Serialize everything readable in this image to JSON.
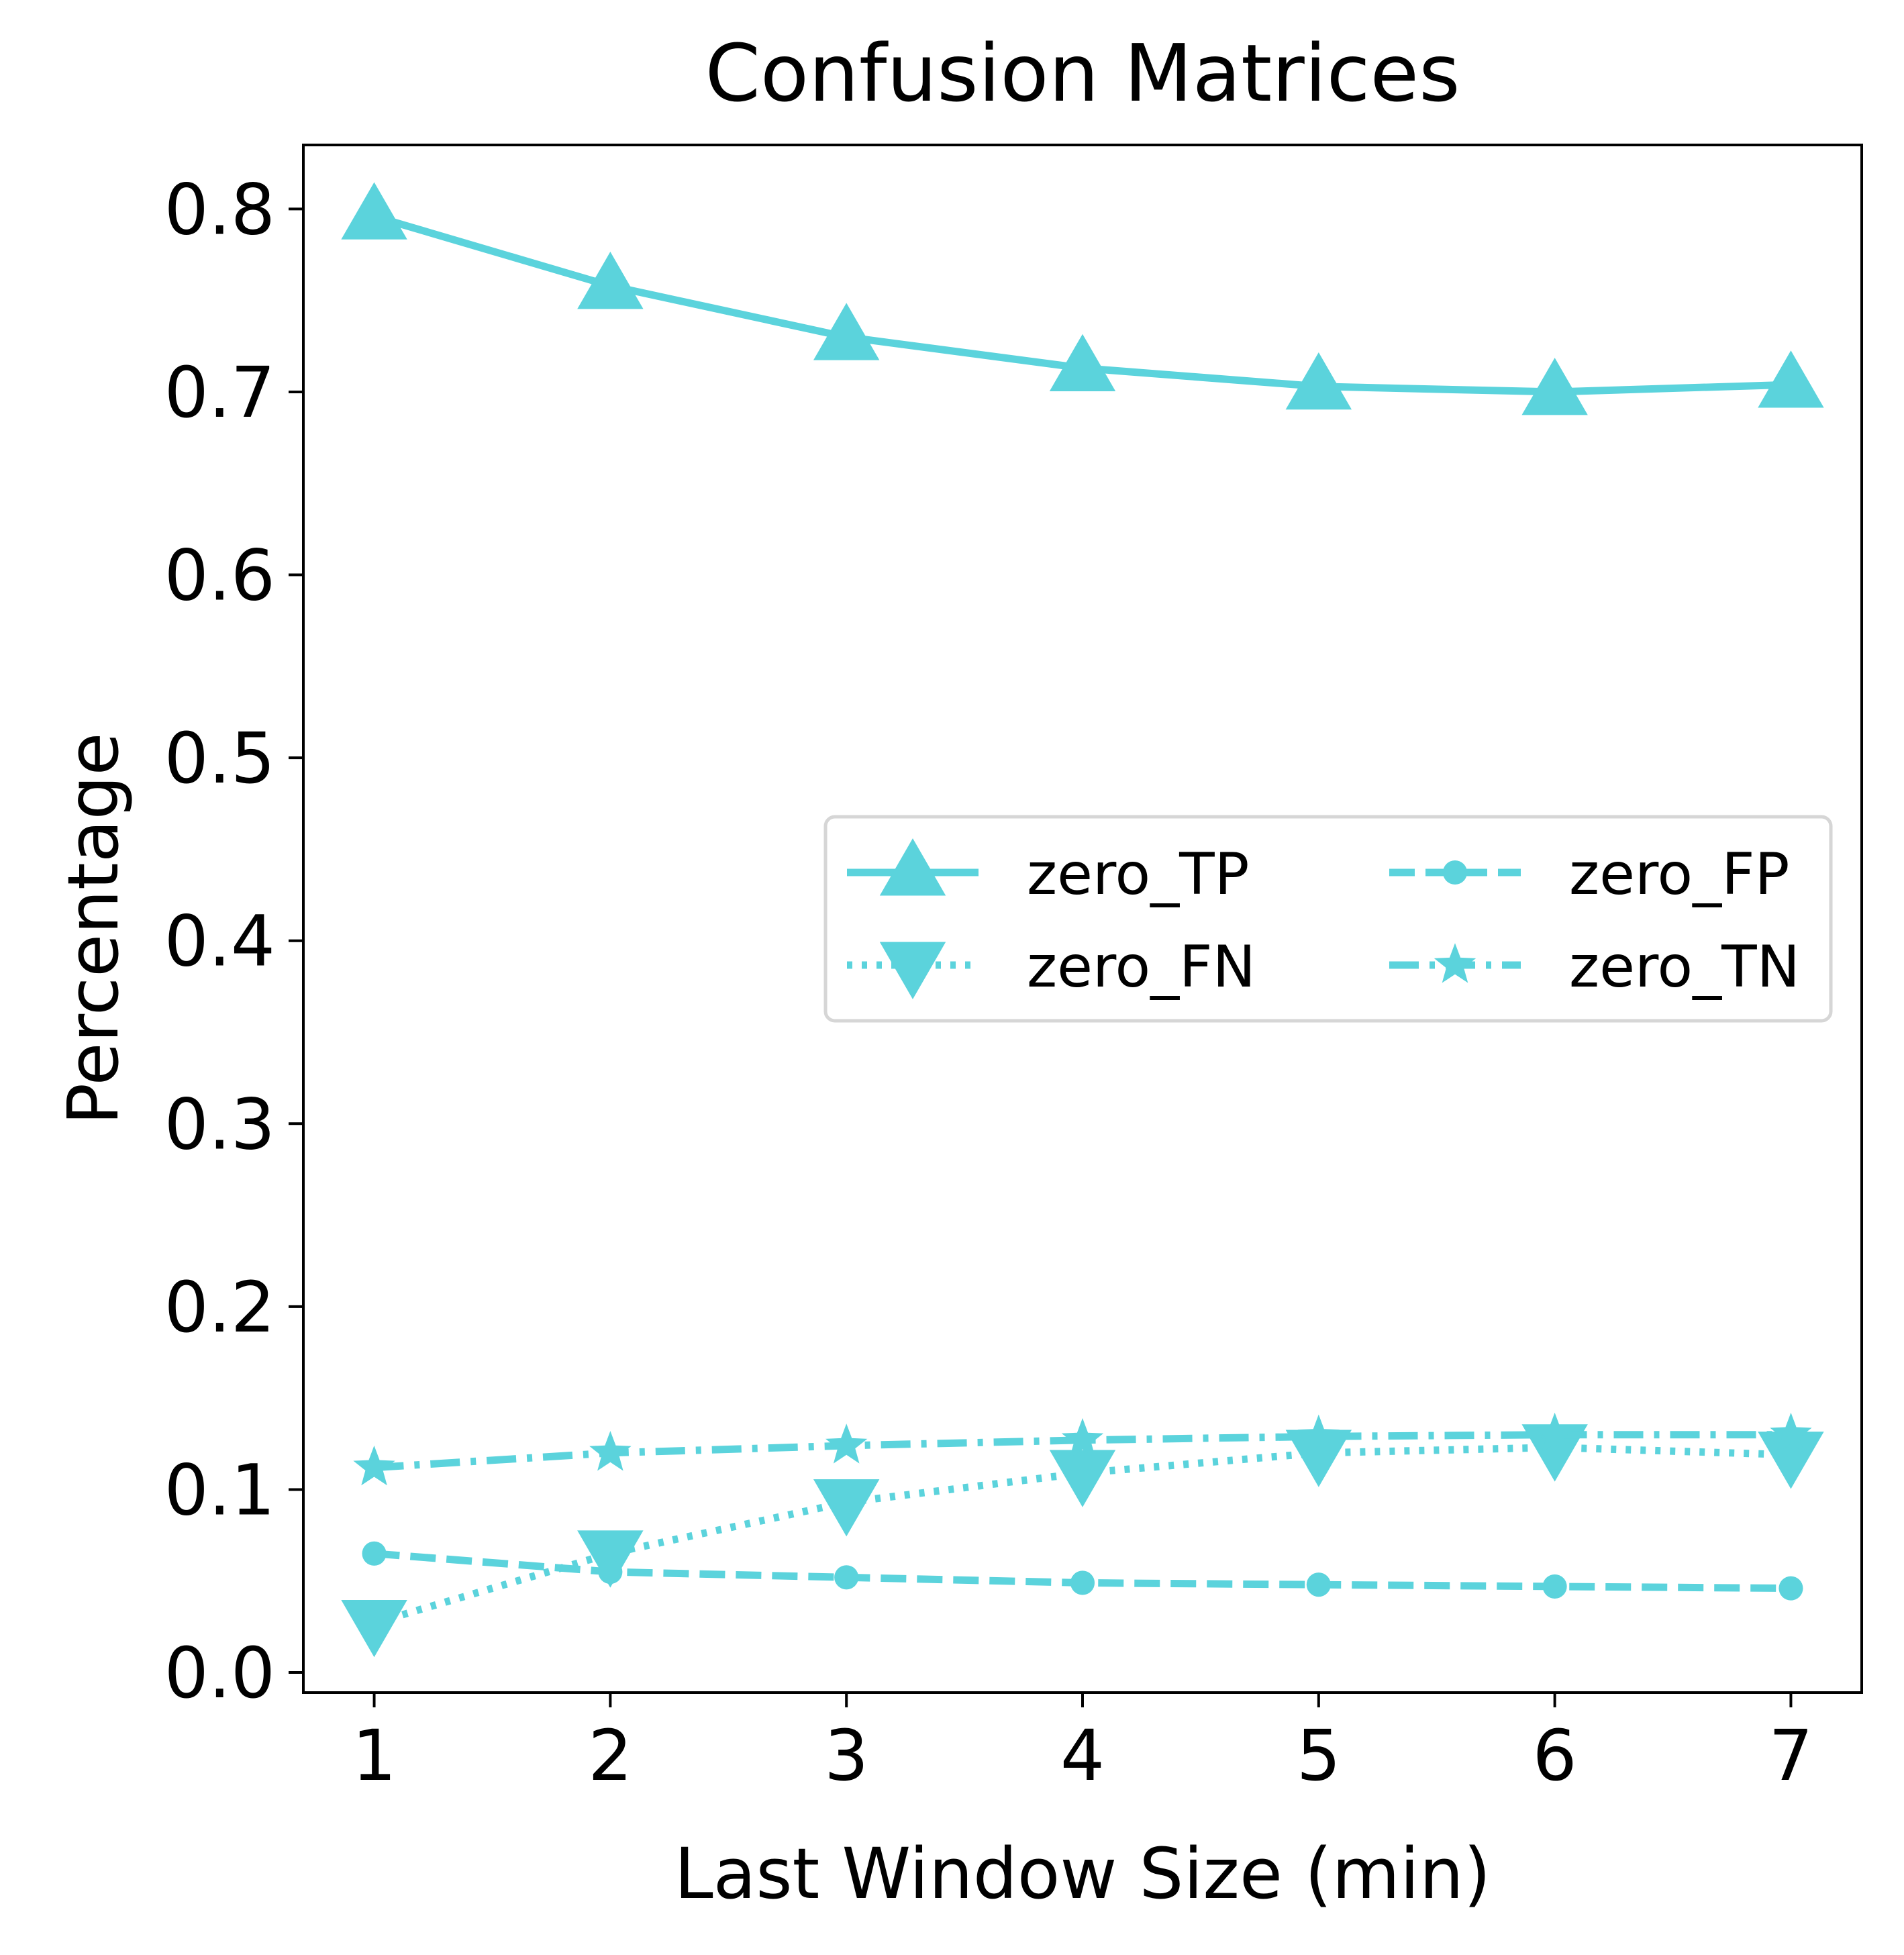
{
  "chart_data": {
    "type": "line",
    "title": "Confusion Matrices",
    "xlabel": "Last Window Size (min)",
    "ylabel": "Percentage",
    "x": [
      1,
      2,
      3,
      4,
      5,
      6,
      7
    ],
    "xticks": [
      "1",
      "2",
      "3",
      "4",
      "5",
      "6",
      "7"
    ],
    "yticks": [
      "0.0",
      "0.1",
      "0.2",
      "0.3",
      "0.4",
      "0.5",
      "0.6",
      "0.7",
      "0.8"
    ],
    "xlim": [
      0.7,
      7.3
    ],
    "ylim": [
      -0.011,
      0.835
    ],
    "grid": false,
    "legend": {
      "placement": "center-right",
      "columns": 2
    },
    "series": [
      {
        "name": "zero_TP",
        "values": [
          0.796,
          0.758,
          0.73,
          0.713,
          0.703,
          0.7,
          0.704
        ],
        "color": "#5bd3dc",
        "line_style": "solid",
        "marker": "triangle-up"
      },
      {
        "name": "zero_FN",
        "values": [
          0.027,
          0.065,
          0.093,
          0.109,
          0.12,
          0.123,
          0.119
        ],
        "color": "#5bd3dc",
        "line_style": "dotted",
        "marker": "triangle-down"
      },
      {
        "name": "zero_FP",
        "values": [
          0.065,
          0.055,
          0.052,
          0.049,
          0.048,
          0.047,
          0.046
        ],
        "color": "#5bd3dc",
        "line_style": "dashed",
        "marker": "circle"
      },
      {
        "name": "zero_TN",
        "values": [
          0.112,
          0.12,
          0.124,
          0.127,
          0.129,
          0.13,
          0.13
        ],
        "color": "#5bd3dc",
        "line_style": "dashdot",
        "marker": "star"
      }
    ]
  }
}
